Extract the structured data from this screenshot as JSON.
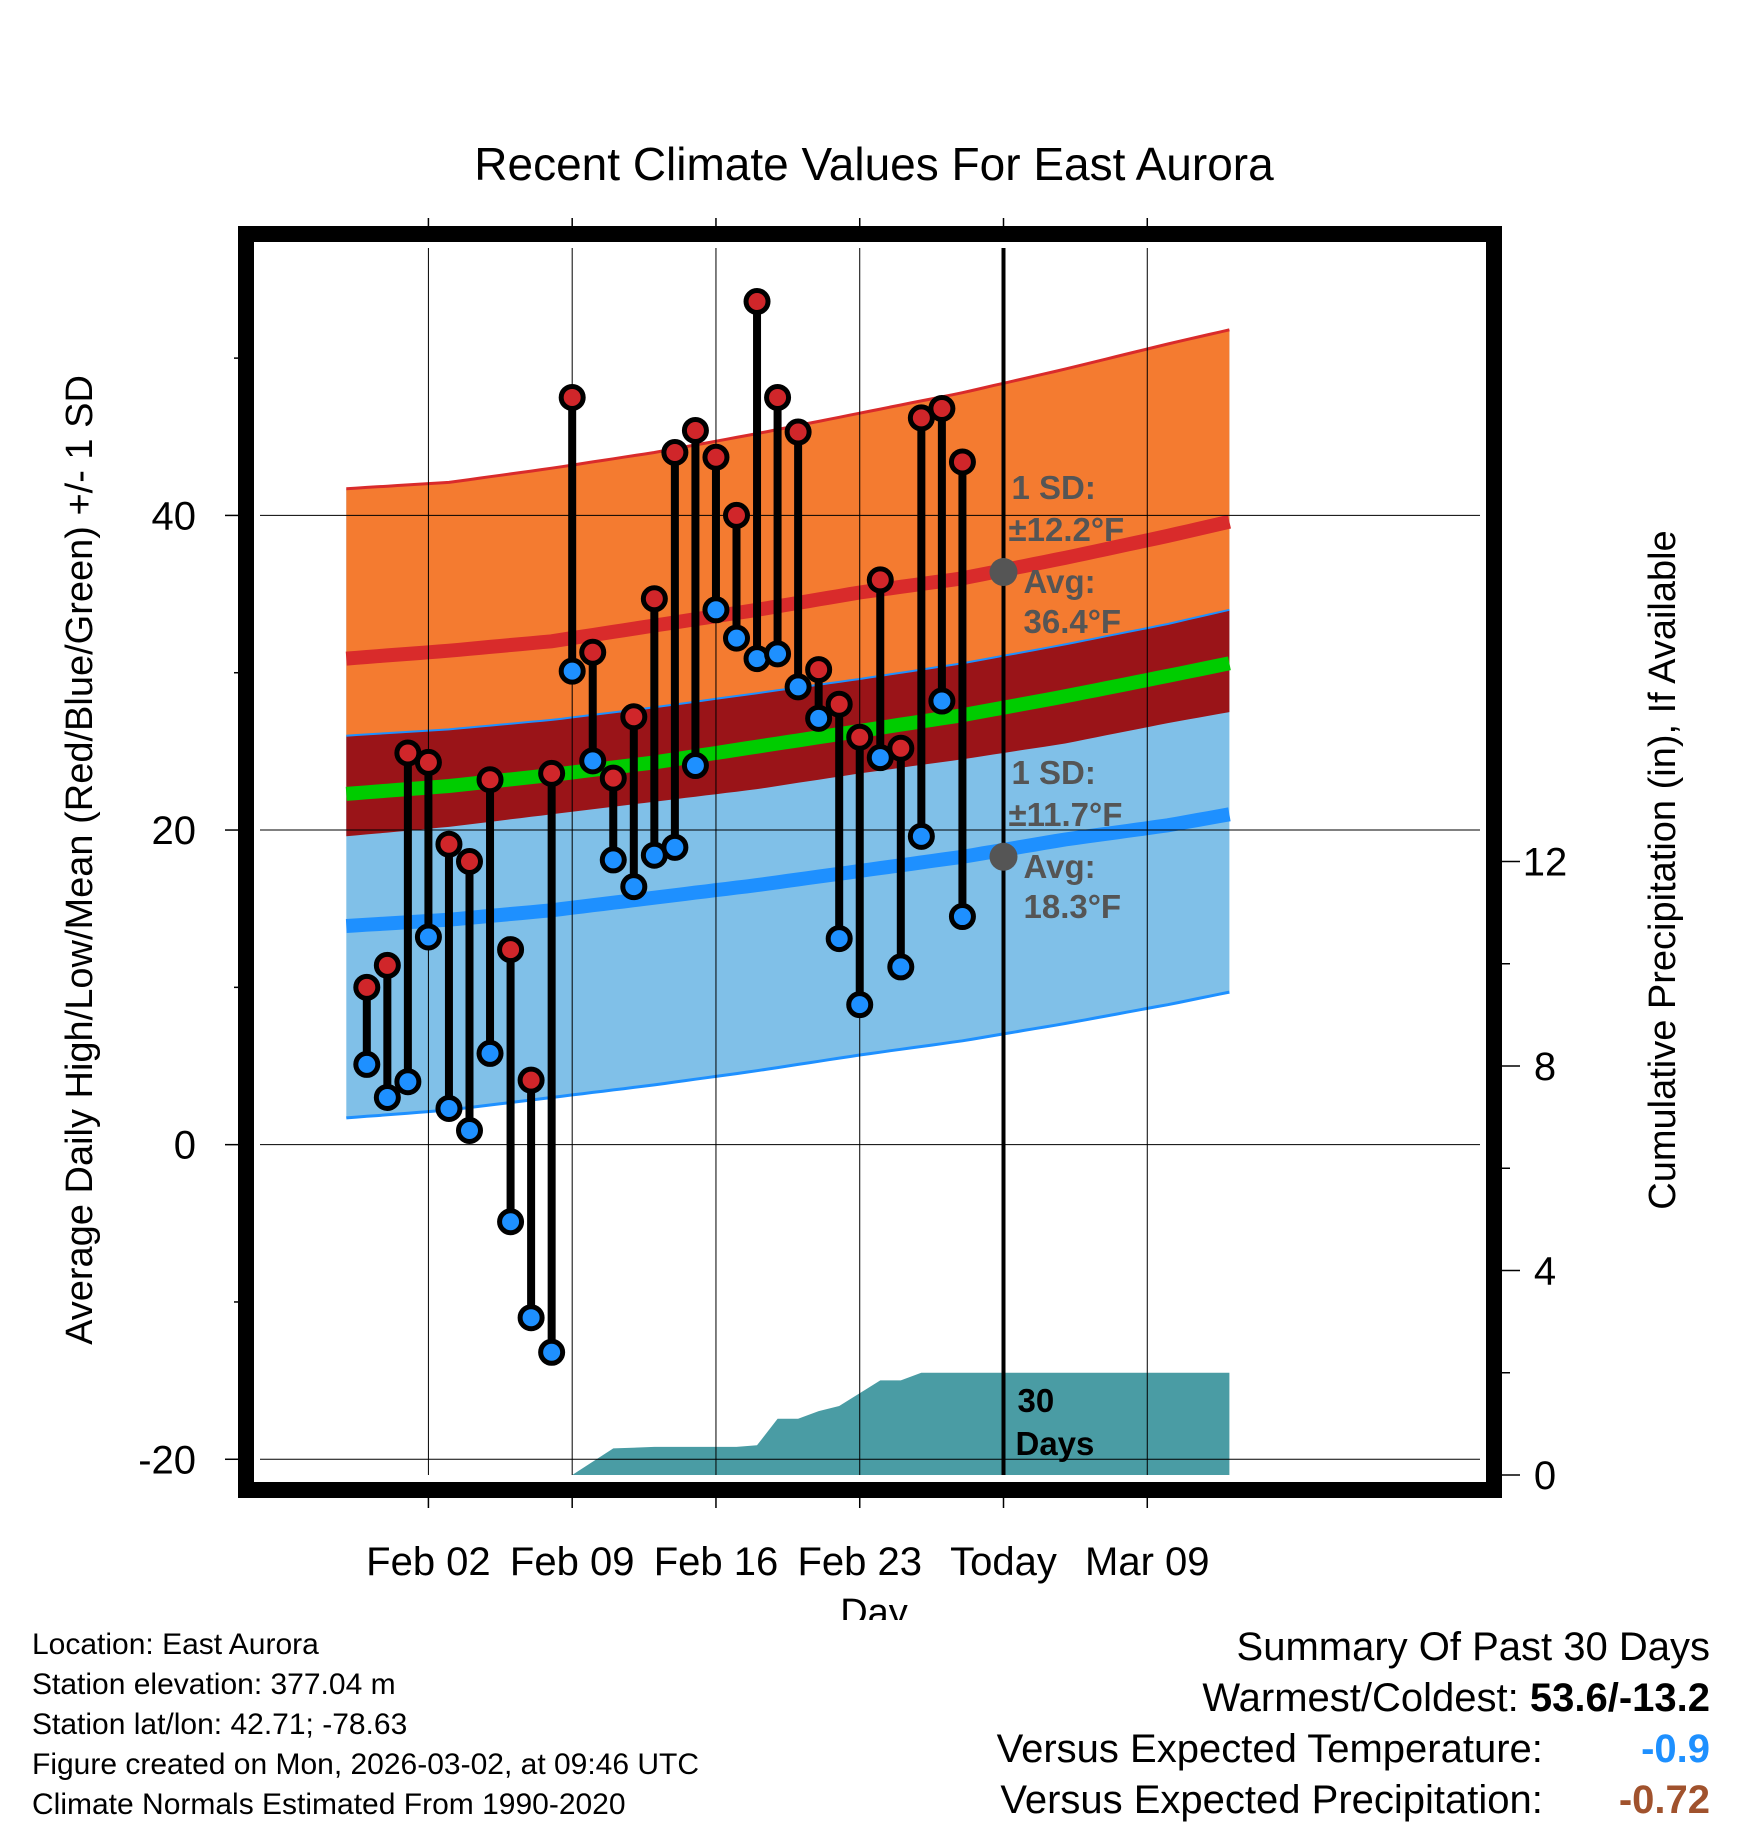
{
  "chart_data": {
    "type": "line",
    "title": "Recent Climate Values For East Aurora",
    "xlabel": "Day",
    "ylabel": "Average Daily High/Low/Mean (Red/Blue/Green) +/- 1 SD",
    "y2label": "Cumulative Precipitation (in), If Available",
    "ylim": [
      -21,
      57
    ],
    "y2lim": [
      0,
      24
    ],
    "xlim": [
      -4.2,
      55.2
    ],
    "x_origin_label": "Jan 29 = 0",
    "x_ticks": [
      {
        "day": 4,
        "label": "Feb 02"
      },
      {
        "day": 11,
        "label": "Feb 09"
      },
      {
        "day": 18,
        "label": "Feb 16"
      },
      {
        "day": 25,
        "label": "Feb 23"
      },
      {
        "day": 32,
        "label": "Today"
      },
      {
        "day": 39,
        "label": "Mar 09"
      }
    ],
    "y_ticks": [
      -20,
      0,
      20,
      40
    ],
    "y2_ticks": [
      0,
      4,
      8,
      12
    ],
    "today_day": 32,
    "daily": {
      "day": [
        1,
        2,
        3,
        4,
        5,
        6,
        7,
        8,
        9,
        10,
        11,
        12,
        13,
        14,
        15,
        16,
        17,
        18,
        19,
        20,
        21,
        22,
        23,
        24,
        25,
        26,
        27,
        28,
        29,
        30
      ],
      "high": [
        10.0,
        11.4,
        24.9,
        24.3,
        19.1,
        18.0,
        23.2,
        12.4,
        4.1,
        23.6,
        47.5,
        31.3,
        23.3,
        27.2,
        34.7,
        44.0,
        45.4,
        43.7,
        40.0,
        53.6,
        47.5,
        45.3,
        30.2,
        28.0,
        25.9,
        35.9,
        25.2,
        46.2,
        46.8,
        43.4
      ],
      "low": [
        5.1,
        3.0,
        4.0,
        13.2,
        2.3,
        0.9,
        5.8,
        -4.9,
        -11.0,
        -13.2,
        30.1,
        24.4,
        18.1,
        16.4,
        18.4,
        18.9,
        24.1,
        34.0,
        32.2,
        30.9,
        31.2,
        29.1,
        27.1,
        13.1,
        8.9,
        24.6,
        11.3,
        19.6,
        28.2,
        14.5
      ]
    },
    "normals": {
      "day": [
        0,
        5,
        10,
        15,
        20,
        25,
        30,
        35,
        40,
        43
      ],
      "high_mean": [
        30.9,
        31.4,
        32.0,
        33.0,
        34.0,
        35.1,
        36.0,
        37.3,
        38.7,
        39.6
      ],
      "high_plus_sd": [
        41.7,
        42.1,
        43.0,
        44.0,
        45.2,
        46.5,
        47.8,
        49.3,
        50.9,
        51.8
      ],
      "mean": [
        22.3,
        22.8,
        23.5,
        24.3,
        25.3,
        26.3,
        27.3,
        28.5,
        29.8,
        30.6
      ],
      "mean_upper": [
        26.0,
        26.4,
        27.0,
        27.8,
        28.7,
        29.6,
        30.6,
        31.8,
        33.1,
        34.0
      ],
      "mean_lower": [
        19.6,
        20.2,
        21.0,
        21.8,
        22.6,
        23.6,
        24.5,
        25.5,
        26.8,
        27.5
      ],
      "low_mean": [
        13.9,
        14.3,
        14.9,
        15.7,
        16.5,
        17.4,
        18.3,
        19.4,
        20.3,
        21.0
      ],
      "low_minus_sd": [
        1.7,
        2.2,
        3.0,
        3.8,
        4.7,
        5.7,
        6.6,
        7.7,
        8.9,
        9.7
      ]
    },
    "precip_cumulative": {
      "day": [
        11,
        13,
        15,
        17,
        19,
        20,
        21,
        22,
        23,
        24,
        25,
        26,
        27,
        28,
        43
      ],
      "value": [
        0.0,
        0.52,
        0.55,
        0.55,
        0.55,
        0.58,
        1.1,
        1.1,
        1.25,
        1.35,
        1.6,
        1.85,
        1.85,
        2.0,
        2.0
      ]
    },
    "annotations": {
      "high_sd_label": "1 SD:",
      "high_sd_value": "±12.2°F",
      "high_avg_label": "Avg:",
      "high_avg_value": "36.4°F",
      "low_sd_label": "1 SD:",
      "low_sd_value": "±11.7°F",
      "low_avg_label": "Avg:",
      "low_avg_value": "18.3°F",
      "high_avg_point": 36.4,
      "low_avg_point": 18.3,
      "days_label_1": "30",
      "days_label_2": "Days"
    },
    "colors": {
      "high_band": "#f47b30",
      "high_line": "#d92b2b",
      "low_band": "#80c0e8",
      "low_line": "#1e90ff",
      "mean_band": "#9a1418",
      "mean_line": "#00cc00",
      "precip": "#4a9ca4",
      "high_dot": "#d0262a",
      "low_dot": "#1e90ff",
      "avg_dot": "#555555"
    }
  },
  "footer": {
    "location": "Location: East Aurora",
    "elevation": "Station elevation: 377.04 m",
    "latlon": "Station lat/lon: 42.71; -78.63",
    "created": "Figure created on Mon, 2026-03-02, at 09:46 UTC",
    "normals": "Climate Normals Estimated From 1990-2020"
  },
  "summary": {
    "title": "Summary Of Past 30 Days",
    "warmest_label": "Warmest/Coldest:",
    "warmest_value": "53.6/-13.2",
    "temp_label": "Versus Expected Temperature:",
    "temp_value": "-0.9",
    "temp_color": "#1e90ff",
    "precip_label": "Versus Expected Precipitation:",
    "precip_value": "-0.72",
    "precip_color": "#a0522d"
  }
}
